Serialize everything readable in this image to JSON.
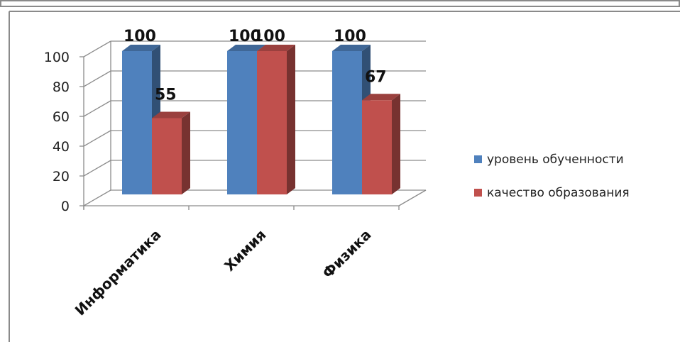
{
  "chart_data": {
    "type": "bar",
    "style": "3d-clustered-column",
    "categories": [
      "Информатика",
      "Химия",
      "Физика"
    ],
    "series": [
      {
        "name": "уровень обученности",
        "values": [
          100,
          100,
          100
        ],
        "color": "#4f81bd"
      },
      {
        "name": "качество образования",
        "values": [
          55,
          100,
          67
        ],
        "color": "#c0504d"
      }
    ],
    "ylim": [
      0,
      100
    ],
    "yticks": [
      0,
      20,
      40,
      60,
      80,
      100
    ],
    "grid": true,
    "legend_position": "right",
    "data_labels": true
  }
}
